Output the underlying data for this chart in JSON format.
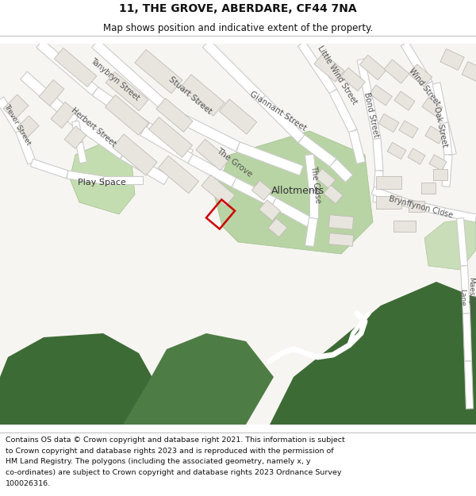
{
  "title_line1": "11, THE GROVE, ABERDARE, CF44 7NA",
  "title_line2": "Map shows position and indicative extent of the property.",
  "footer_lines": [
    "Contains OS data © Crown copyright and database right 2021. This information is subject",
    "to Crown copyright and database rights 2023 and is reproduced with the permission of",
    "HM Land Registry. The polygons (including the associated geometry, namely x, y",
    "co-ordinates) are subject to Crown copyright and database rights 2023 Ordnance Survey",
    "100026316."
  ],
  "title_fontsize": 10,
  "subtitle_fontsize": 8.5,
  "footer_fontsize": 6.8,
  "fig_width": 6.0,
  "fig_height": 6.25,
  "map_bg": "#f7f5f2",
  "building_fill": "#e8e4de",
  "building_edge": "#c0bcb6",
  "road_fill": "#ffffff",
  "road_edge": "#cccccc",
  "light_green": "#c8ddb8",
  "medium_green": "#4e7c45",
  "dark_green": "#3d6b35",
  "allotments_green": "#b8d4a4",
  "playspace_green": "#c4ddb0",
  "plot_color": "#cc0000",
  "text_color": "#333333",
  "street_color": "#555555"
}
